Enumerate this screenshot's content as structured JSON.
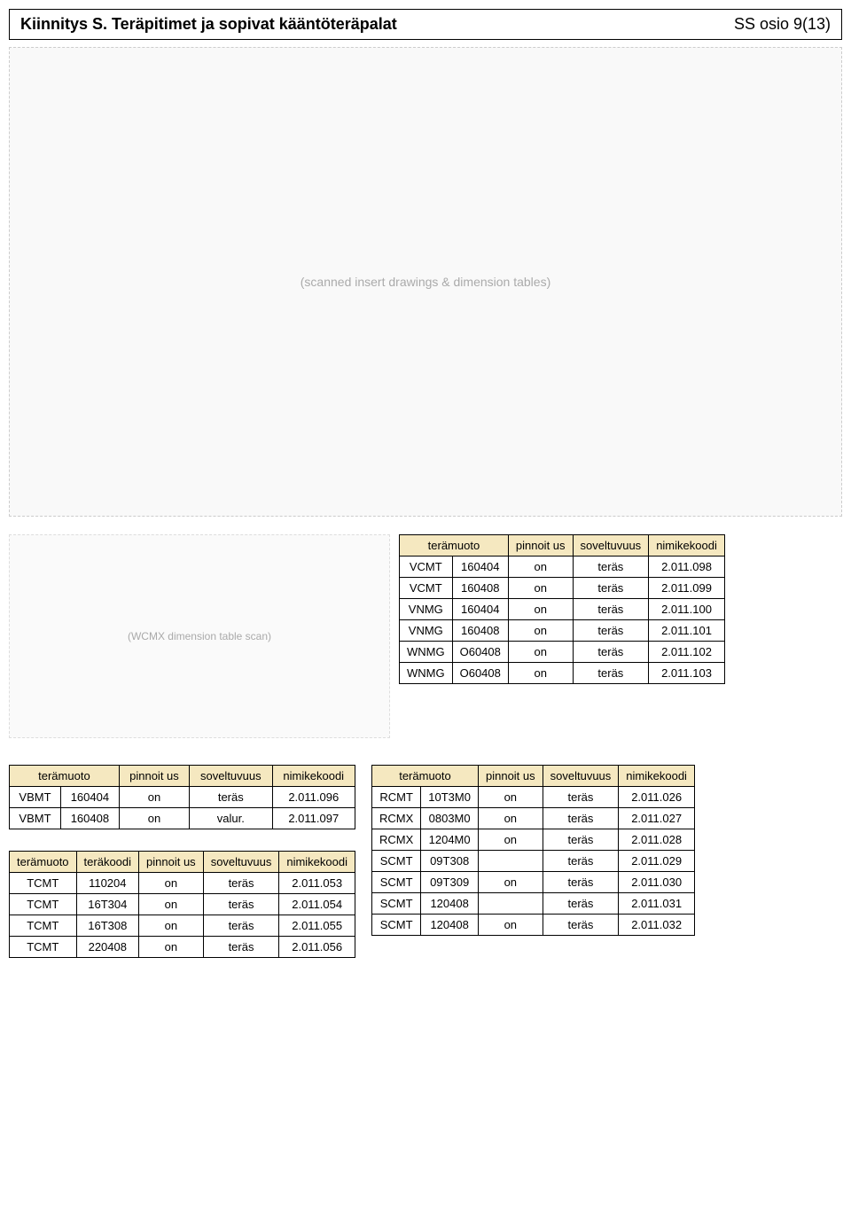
{
  "header": {
    "title": "Kiinnitys S. Teräpitimet ja sopivat kääntöteräpalat",
    "section": "SS osio 9(13)"
  },
  "labels": {
    "teramuoto": "terämuoto",
    "terakoodi": "teräkoodi",
    "pinnoitus": "pinnoit us",
    "soveltuvuus": "soveltuvuus",
    "nimikekoodi": "nimikekoodi",
    "scan_note": "(scanned insert drawings & dimension tables)",
    "scan_side": "(WCMX dimension table scan)"
  },
  "table_top": {
    "rows": [
      [
        "VCMT",
        "160404",
        "on",
        "teräs",
        "2.011.098"
      ],
      [
        "VCMT",
        "160408",
        "on",
        "teräs",
        "2.011.099"
      ],
      [
        "VNMG",
        "160404",
        "on",
        "teräs",
        "2.011.100"
      ],
      [
        "VNMG",
        "160408",
        "on",
        "teräs",
        "2.011.101"
      ],
      [
        "WNMG",
        "O60408",
        "on",
        "teräs",
        "2.011.102"
      ],
      [
        "WNMG",
        "O60408",
        "on",
        "teräs",
        "2.011.103"
      ]
    ]
  },
  "table_vbmt": {
    "rows": [
      [
        "VBMT",
        "160404",
        "on",
        "teräs",
        "2.011.096"
      ],
      [
        "VBMT",
        "160408",
        "on",
        "valur.",
        "2.011.097"
      ]
    ]
  },
  "table_tcmt": {
    "rows": [
      [
        "TCMT",
        "110204",
        "on",
        "teräs",
        "2.011.053"
      ],
      [
        "TCMT",
        "16T304",
        "on",
        "teräs",
        "2.011.054"
      ],
      [
        "TCMT",
        "16T308",
        "on",
        "teräs",
        "2.011.055"
      ],
      [
        "TCMT",
        "220408",
        "on",
        "teräs",
        "2.011.056"
      ]
    ]
  },
  "table_rc": {
    "rows": [
      [
        "RCMT",
        "10T3M0",
        "on",
        "teräs",
        "2.011.026"
      ],
      [
        "RCMX",
        "0803M0",
        "on",
        "teräs",
        "2.011.027"
      ],
      [
        "RCMX",
        "1204M0",
        "on",
        "teräs",
        "2.011.028"
      ],
      [
        "SCMT",
        "09T308",
        "",
        "teräs",
        "2.011.029"
      ],
      [
        "SCMT",
        "09T309",
        "on",
        "teräs",
        "2.011.030"
      ],
      [
        "SCMT",
        "120408",
        "",
        "teräs",
        "2.011.031"
      ],
      [
        "SCMT",
        "120408",
        "on",
        "teräs",
        "2.011.032"
      ]
    ]
  }
}
